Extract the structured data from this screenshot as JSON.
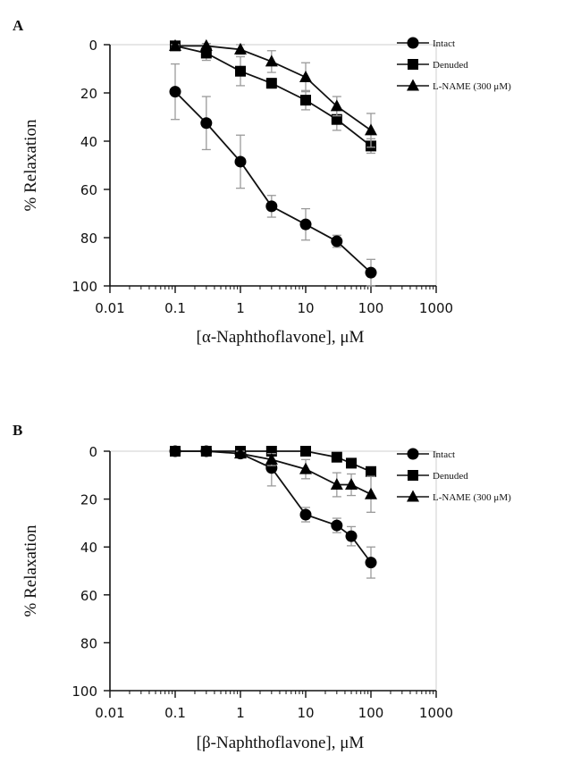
{
  "chart_data": [
    {
      "panel_label": "A",
      "type": "line",
      "xlabel": "[α-Naphthoflavone], μM",
      "ylabel": "% Relaxation",
      "xscale": "log",
      "xlim": [
        0.01,
        1000
      ],
      "ylim": [
        0,
        100
      ],
      "y_inverted": true,
      "x_ticks": [
        "0.01",
        "0.1",
        "1",
        "10",
        "100",
        "1000"
      ],
      "y_ticks": [
        "0",
        "20",
        "40",
        "60",
        "80",
        "100"
      ],
      "grid": false,
      "legend_position": "top-right",
      "series": [
        {
          "name": "Intact",
          "marker": "circle",
          "x": [
            0.1,
            0.3,
            1,
            3,
            10,
            30,
            100
          ],
          "y": [
            19.5,
            32.5,
            48.5,
            67,
            74.5,
            81.5,
            94.5
          ],
          "err": [
            11.5,
            11,
            11,
            4.5,
            6.5,
            2.5,
            5.5
          ]
        },
        {
          "name": "Denuded",
          "marker": "square",
          "x": [
            0.1,
            0.3,
            1,
            3,
            10,
            30,
            100
          ],
          "y": [
            0.5,
            3.5,
            11,
            16,
            23,
            31,
            42
          ],
          "err": [
            1,
            3,
            6,
            2,
            4,
            4.5,
            3
          ]
        },
        {
          "name": "L-NAME (300 μM)",
          "marker": "triangle",
          "x": [
            0.1,
            0.3,
            1,
            3,
            10,
            30,
            100
          ],
          "y": [
            0.5,
            0.5,
            2,
            7,
            13.5,
            25.5,
            35.5
          ],
          "err": [
            0.5,
            1,
            2,
            4.5,
            6,
            4,
            7
          ]
        }
      ]
    },
    {
      "panel_label": "B",
      "type": "line",
      "xlabel": "[β-Naphthoflavone], μM",
      "ylabel": "% Relaxation",
      "xscale": "log",
      "xlim": [
        0.01,
        1000
      ],
      "ylim": [
        0,
        100
      ],
      "y_inverted": true,
      "x_ticks": [
        "0.01",
        "0.1",
        "1",
        "10",
        "100",
        "1000"
      ],
      "y_ticks": [
        "0",
        "20",
        "40",
        "60",
        "80",
        "100"
      ],
      "grid": false,
      "legend_position": "top-right",
      "series": [
        {
          "name": "Intact",
          "marker": "circle",
          "x": [
            0.1,
            0.3,
            1,
            3,
            10,
            30,
            50,
            100
          ],
          "y": [
            0,
            0,
            1,
            7,
            26.5,
            31,
            35.5,
            46.5
          ],
          "err": [
            0.5,
            0.5,
            1.5,
            7.5,
            3,
            3,
            4,
            6.5
          ]
        },
        {
          "name": "Denuded",
          "marker": "square",
          "x": [
            0.1,
            0.3,
            1,
            3,
            10,
            30,
            50,
            100
          ],
          "y": [
            0,
            0,
            0,
            0,
            0,
            2.5,
            5,
            8.5
          ],
          "err": [
            0.5,
            0.5,
            0.5,
            0.5,
            0.5,
            1,
            1.5,
            1.5
          ]
        },
        {
          "name": "L-NAME (300 μM)",
          "marker": "triangle",
          "x": [
            1,
            3,
            10,
            30,
            50,
            100
          ],
          "y": [
            1,
            3.5,
            7.5,
            14,
            14,
            18
          ],
          "err": [
            1,
            2.5,
            4,
            5,
            4.5,
            7.5
          ]
        }
      ]
    }
  ]
}
